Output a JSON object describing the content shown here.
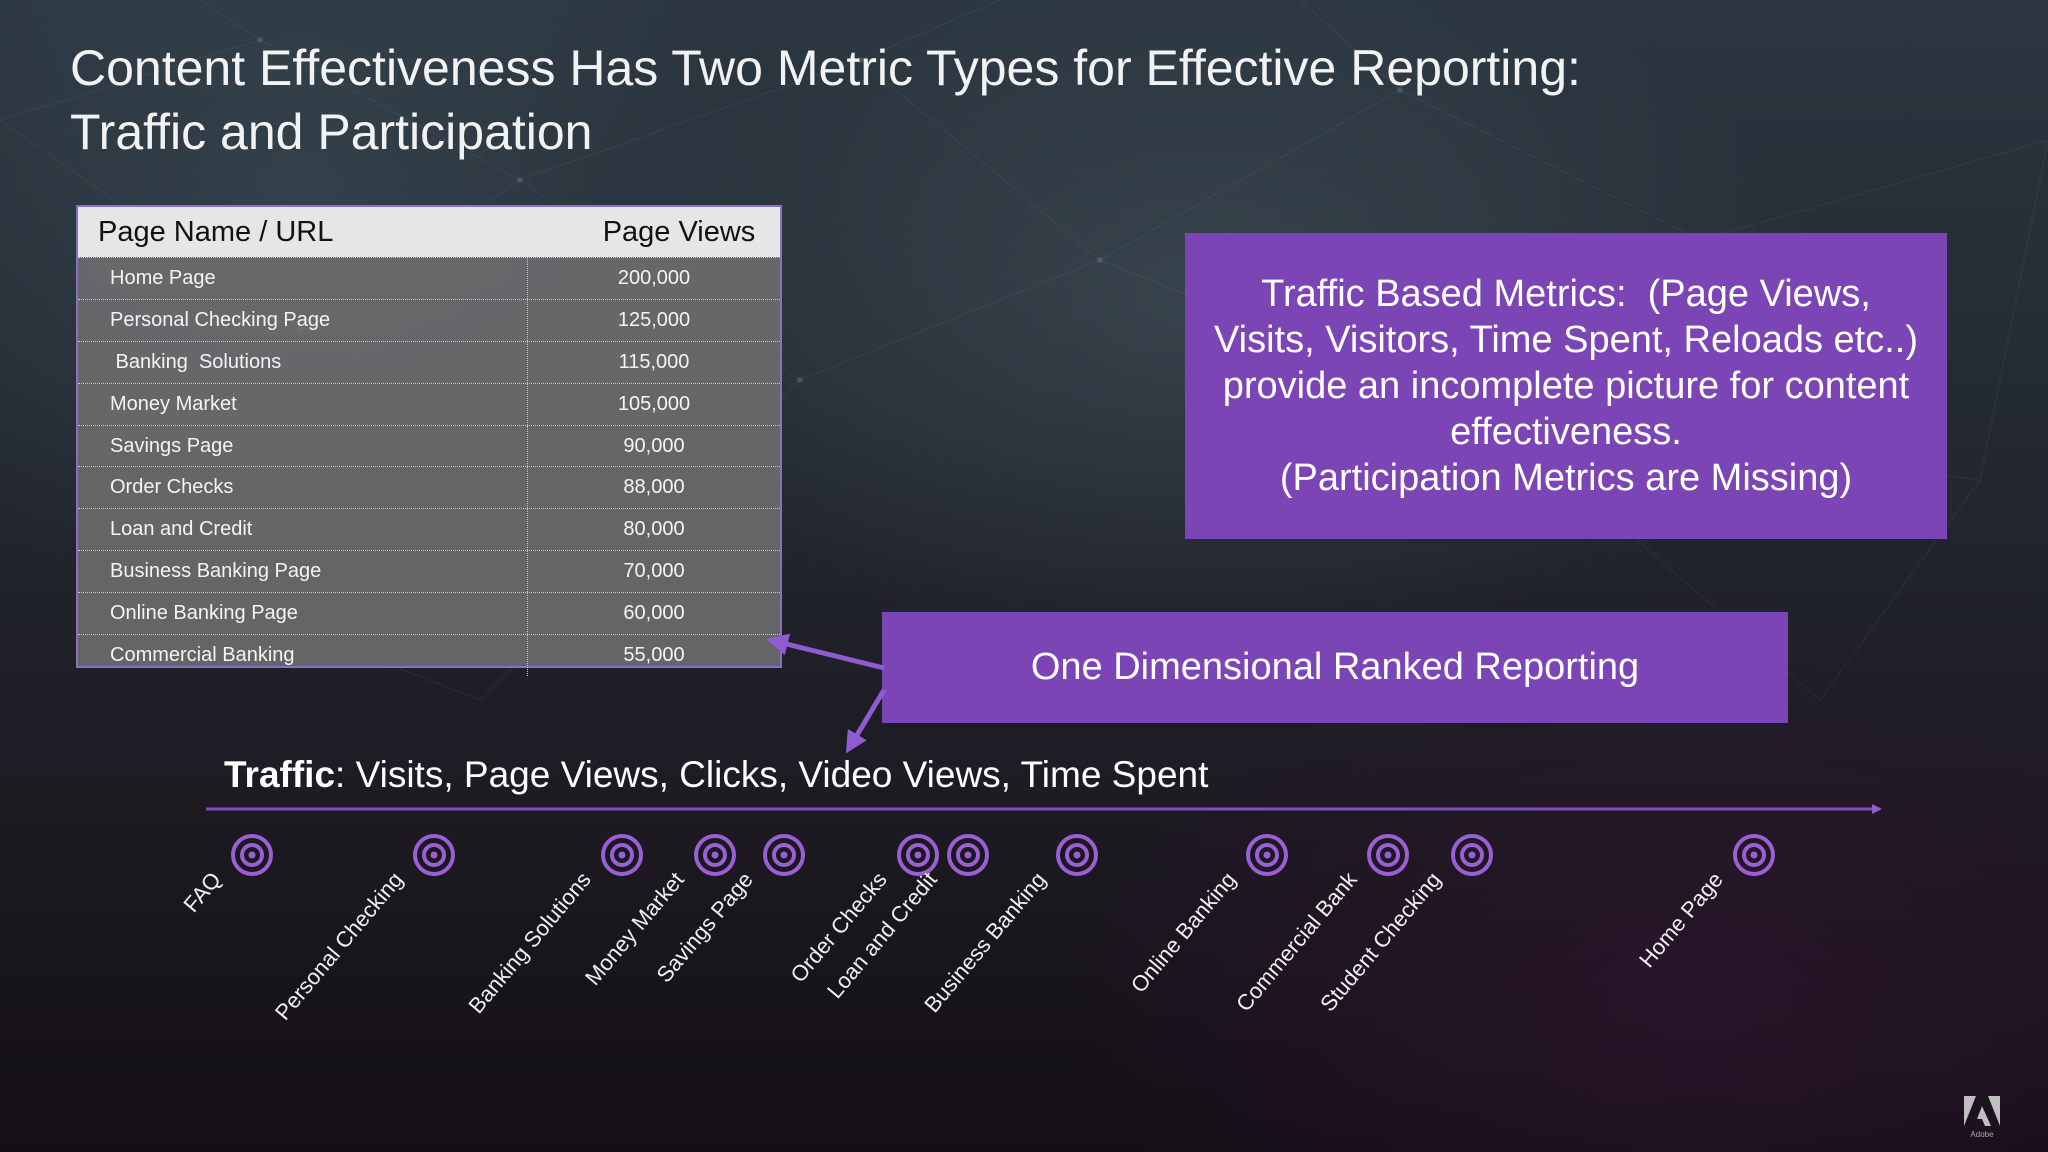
{
  "title": {
    "line1": "Content Effectiveness Has Two Metric Types for Effective Reporting:",
    "line2": "Traffic and Participation"
  },
  "table": {
    "headers": [
      "Page Name / URL",
      "Page Views"
    ],
    "rows": [
      [
        "Home Page",
        "200,000"
      ],
      [
        "Personal Checking Page",
        "125,000"
      ],
      [
        " Banking  Solutions",
        "115,000"
      ],
      [
        "Money Market",
        "105,000"
      ],
      [
        "Savings Page",
        "90,000"
      ],
      [
        "Order Checks",
        "88,000"
      ],
      [
        "Loan and Credit",
        "80,000"
      ],
      [
        "Business Banking Page",
        "70,000"
      ],
      [
        "Online Banking Page",
        "60,000"
      ],
      [
        "Commercial Banking",
        "55,000"
      ]
    ]
  },
  "callout_traffic": {
    "lines": [
      "Traffic Based Metrics:  (Page Views,",
      "Visits, Visitors, Time Spent, Reloads etc..)",
      "provide an incomplete picture for content",
      "effectiveness.",
      "(Participation Metrics are Missing)"
    ]
  },
  "callout_ranked": {
    "text": "One Dimensional Ranked Reporting"
  },
  "axis": {
    "label_bold": "Traffic",
    "label_rest": ": Visits, Page Views, Clicks, Video Views, Time Spent",
    "points": [
      "FAQ",
      "Personal Checking",
      "Banking Solutions",
      "Money Market",
      "Savings Page",
      "Order Checks",
      "Loan and Credit",
      "Business Banking",
      "Online Banking",
      "Commercial Bank",
      "Student Checking",
      "Home Page"
    ]
  },
  "logo": {
    "text": "Adobe"
  },
  "colors": {
    "accent": "#7b45b6",
    "marker": "#9a5fd4"
  }
}
